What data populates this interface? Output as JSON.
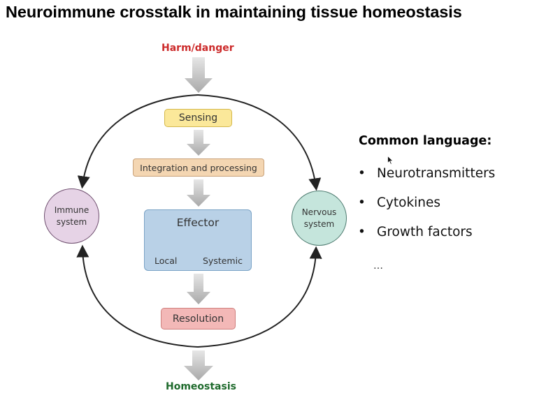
{
  "title": "Neuroimmune crosstalk in maintaining tissue homeostasis",
  "diagram": {
    "input_label": "Harm/danger",
    "output_label": "Homeostasis",
    "steps": {
      "sensing": "Sensing",
      "integration": "Integration and processing",
      "effector": "Effector",
      "effector_local": "Local",
      "effector_systemic": "Systemic",
      "resolution": "Resolution"
    },
    "nodes": {
      "immune_line1": "Immune",
      "immune_line2": "system",
      "nervous_line1": "Nervous",
      "nervous_line2": "system"
    }
  },
  "common_language": {
    "heading": "Common language:",
    "bullet": "•",
    "items": [
      "Neurotransmitters",
      "Cytokines",
      "Growth factors"
    ],
    "more": "…"
  },
  "colors": {
    "harm_label": "#cc2a2a",
    "homeostasis_label": "#1e6a2c",
    "sensing_fill": "#fbe89a",
    "integration_fill": "#f4d6b2",
    "effector_fill": "#b9d1e7",
    "resolution_fill": "#f3b8b7",
    "immune_fill": "#e6d3e6",
    "nervous_fill": "#c5e5dc"
  }
}
